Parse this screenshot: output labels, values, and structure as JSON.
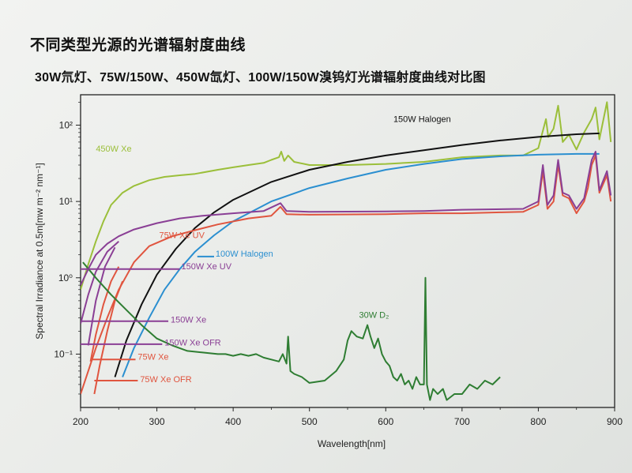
{
  "header": {
    "title": "不同类型光源的光谱辐射度曲线",
    "subtitle": "30W氘灯、75W/150W、450W氙灯、100W/150W溴钨灯光谱辐射度曲线对比图"
  },
  "chart_data": {
    "type": "line",
    "xlabel": "Wavelength[nm]",
    "ylabel": "Spectral Irradiance at 0.5m[mw m⁻² nm⁻¹]",
    "xlim": [
      200,
      900
    ],
    "ylim": [
      0.02,
      250
    ],
    "yscale": "log",
    "x_ticks": [
      200,
      300,
      400,
      500,
      600,
      700,
      800,
      900
    ],
    "x_tick_labels": [
      "200",
      "300",
      "400",
      "500",
      "600",
      "700",
      "800",
      "900"
    ],
    "y_ticks": [
      0.1,
      1,
      10,
      100
    ],
    "y_tick_labels": [
      "10⁻¹",
      "10⁰",
      "10¹",
      "10²"
    ],
    "grid": false,
    "series": [
      {
        "name": "450W Xe",
        "color": "#9bbf3a",
        "label_at": [
          220,
          45
        ],
        "points": [
          [
            200,
            0.7
          ],
          [
            210,
            1.5
          ],
          [
            220,
            3
          ],
          [
            230,
            5.5
          ],
          [
            240,
            9
          ],
          [
            255,
            13
          ],
          [
            270,
            16
          ],
          [
            290,
            19
          ],
          [
            310,
            21
          ],
          [
            330,
            22
          ],
          [
            350,
            23
          ],
          [
            380,
            26
          ],
          [
            400,
            28
          ],
          [
            420,
            30
          ],
          [
            440,
            32
          ],
          [
            450,
            35
          ],
          [
            460,
            38
          ],
          [
            463,
            45
          ],
          [
            467,
            34
          ],
          [
            472,
            40
          ],
          [
            480,
            33
          ],
          [
            500,
            30
          ],
          [
            550,
            30
          ],
          [
            600,
            31
          ],
          [
            650,
            33
          ],
          [
            700,
            38
          ],
          [
            750,
            40
          ],
          [
            780,
            40
          ],
          [
            800,
            50
          ],
          [
            810,
            120
          ],
          [
            813,
            70
          ],
          [
            820,
            90
          ],
          [
            826,
            180
          ],
          [
            832,
            60
          ],
          [
            840,
            75
          ],
          [
            850,
            48
          ],
          [
            860,
            80
          ],
          [
            870,
            120
          ],
          [
            875,
            170
          ],
          [
            880,
            65
          ],
          [
            890,
            200
          ],
          [
            895,
            60
          ]
        ]
      },
      {
        "name": "150W Halogen",
        "color": "#111111",
        "label_at": [
          610,
          110
        ],
        "points": [
          [
            245,
            0.05
          ],
          [
            260,
            0.15
          ],
          [
            280,
            0.45
          ],
          [
            300,
            1.1
          ],
          [
            325,
            2.4
          ],
          [
            350,
            4.5
          ],
          [
            375,
            7.2
          ],
          [
            400,
            10.5
          ],
          [
            450,
            18
          ],
          [
            500,
            26
          ],
          [
            550,
            33
          ],
          [
            600,
            40
          ],
          [
            650,
            47
          ],
          [
            700,
            55
          ],
          [
            750,
            63
          ],
          [
            800,
            70
          ],
          [
            850,
            76
          ],
          [
            880,
            78
          ]
        ]
      },
      {
        "name": "100W Halogen",
        "color": "#2b8fd0",
        "label_at": [
          377,
          1.9
        ],
        "points": [
          [
            255,
            0.05
          ],
          [
            270,
            0.12
          ],
          [
            290,
            0.3
          ],
          [
            310,
            0.7
          ],
          [
            330,
            1.3
          ],
          [
            350,
            2.2
          ],
          [
            375,
            3.6
          ],
          [
            400,
            5.5
          ],
          [
            450,
            10
          ],
          [
            500,
            15
          ],
          [
            550,
            20
          ],
          [
            600,
            26
          ],
          [
            650,
            31
          ],
          [
            700,
            36
          ],
          [
            750,
            39
          ],
          [
            800,
            41
          ],
          [
            850,
            42
          ],
          [
            880,
            42
          ]
        ]
      },
      {
        "name": "75W Xe UV",
        "color": "#e0553f",
        "label_at": [
          303,
          3.3
        ],
        "points": [
          [
            200,
            0.03
          ],
          [
            210,
            0.06
          ],
          [
            220,
            0.12
          ],
          [
            235,
            0.3
          ],
          [
            250,
            0.7
          ],
          [
            270,
            1.6
          ],
          [
            290,
            2.6
          ],
          [
            320,
            3.5
          ],
          [
            350,
            4.2
          ],
          [
            380,
            5
          ],
          [
            420,
            6
          ],
          [
            450,
            6.5
          ],
          [
            462,
            8.5
          ],
          [
            470,
            6.8
          ],
          [
            500,
            6.7
          ],
          [
            600,
            6.8
          ],
          [
            650,
            7
          ],
          [
            700,
            7
          ],
          [
            750,
            7.2
          ],
          [
            780,
            7.3
          ],
          [
            800,
            9
          ],
          [
            806,
            25
          ],
          [
            812,
            8
          ],
          [
            820,
            10
          ],
          [
            826,
            30
          ],
          [
            832,
            12
          ],
          [
            840,
            11
          ],
          [
            850,
            7
          ],
          [
            860,
            10
          ],
          [
            865,
            15
          ],
          [
            870,
            30
          ],
          [
            875,
            40
          ],
          [
            880,
            13
          ],
          [
            890,
            22
          ],
          [
            895,
            10
          ]
        ]
      },
      {
        "name": "150W Xe UV",
        "color": "#8a3f95",
        "label_at": [
          332,
          1.3
        ],
        "points": [
          [
            200,
            0.8
          ],
          [
            210,
            1.3
          ],
          [
            220,
            2
          ],
          [
            235,
            2.8
          ],
          [
            250,
            3.5
          ],
          [
            270,
            4.3
          ],
          [
            300,
            5.2
          ],
          [
            330,
            6
          ],
          [
            360,
            6.5
          ],
          [
            400,
            7
          ],
          [
            440,
            7.5
          ],
          [
            462,
            9.5
          ],
          [
            470,
            7.5
          ],
          [
            500,
            7.3
          ],
          [
            600,
            7.4
          ],
          [
            650,
            7.5
          ],
          [
            700,
            7.8
          ],
          [
            780,
            8
          ],
          [
            800,
            10
          ],
          [
            806,
            30
          ],
          [
            812,
            9
          ],
          [
            820,
            12
          ],
          [
            826,
            35
          ],
          [
            832,
            13
          ],
          [
            840,
            12
          ],
          [
            850,
            8
          ],
          [
            860,
            11
          ],
          [
            870,
            35
          ],
          [
            875,
            45
          ],
          [
            880,
            14
          ],
          [
            890,
            25
          ],
          [
            895,
            12
          ]
        ]
      },
      {
        "name": "150W Xe",
        "color": "#8a3f95",
        "label_at": [
          318,
          0.26
        ],
        "points": [
          [
            200,
            0.25
          ],
          [
            210,
            0.6
          ],
          [
            220,
            1.2
          ],
          [
            235,
            2.2
          ],
          [
            250,
            3
          ]
        ]
      },
      {
        "name": "150W Xe OFR",
        "color": "#8a3f95",
        "label_at": [
          310,
          0.13
        ],
        "points": [
          [
            210,
            0.13
          ],
          [
            220,
            0.5
          ],
          [
            232,
            1.4
          ],
          [
            245,
            2.5
          ]
        ]
      },
      {
        "name": "75W Xe",
        "color": "#e0553f",
        "label_at": [
          275,
          0.085
        ],
        "points": [
          [
            213,
            0.08
          ],
          [
            220,
            0.18
          ],
          [
            230,
            0.45
          ],
          [
            240,
            0.9
          ],
          [
            250,
            1.4
          ]
        ]
      },
      {
        "name": "75W Xe OFR",
        "color": "#e0553f",
        "label_at": [
          278,
          0.043
        ],
        "points": [
          [
            218,
            0.03
          ],
          [
            225,
            0.07
          ],
          [
            235,
            0.2
          ],
          [
            245,
            0.5
          ],
          [
            255,
            0.9
          ]
        ]
      },
      {
        "name": "30W D₂",
        "color": "#2e7d32",
        "label_at": [
          565,
          0.3
        ],
        "points": [
          [
            203,
            1.6
          ],
          [
            220,
            1.0
          ],
          [
            240,
            0.6
          ],
          [
            260,
            0.38
          ],
          [
            280,
            0.24
          ],
          [
            300,
            0.16
          ],
          [
            320,
            0.13
          ],
          [
            340,
            0.11
          ],
          [
            360,
            0.105
          ],
          [
            380,
            0.1
          ],
          [
            390,
            0.1
          ],
          [
            400,
            0.095
          ],
          [
            410,
            0.1
          ],
          [
            420,
            0.095
          ],
          [
            430,
            0.1
          ],
          [
            440,
            0.09
          ],
          [
            450,
            0.085
          ],
          [
            460,
            0.08
          ],
          [
            465,
            0.1
          ],
          [
            470,
            0.075
          ],
          [
            472,
            0.17
          ],
          [
            475,
            0.06
          ],
          [
            480,
            0.055
          ],
          [
            490,
            0.05
          ],
          [
            500,
            0.042
          ],
          [
            520,
            0.045
          ],
          [
            535,
            0.06
          ],
          [
            545,
            0.085
          ],
          [
            550,
            0.15
          ],
          [
            555,
            0.2
          ],
          [
            562,
            0.17
          ],
          [
            570,
            0.16
          ],
          [
            576,
            0.24
          ],
          [
            580,
            0.17
          ],
          [
            585,
            0.12
          ],
          [
            590,
            0.16
          ],
          [
            595,
            0.1
          ],
          [
            600,
            0.08
          ],
          [
            605,
            0.07
          ],
          [
            610,
            0.05
          ],
          [
            615,
            0.045
          ],
          [
            620,
            0.055
          ],
          [
            625,
            0.04
          ],
          [
            630,
            0.045
          ],
          [
            635,
            0.035
          ],
          [
            640,
            0.05
          ],
          [
            645,
            0.04
          ],
          [
            650,
            0.04
          ],
          [
            652,
            1.0
          ],
          [
            654,
            0.04
          ],
          [
            658,
            0.025
          ],
          [
            662,
            0.035
          ],
          [
            668,
            0.03
          ],
          [
            675,
            0.035
          ],
          [
            680,
            0.025
          ],
          [
            690,
            0.03
          ],
          [
            700,
            0.03
          ],
          [
            710,
            0.04
          ],
          [
            720,
            0.035
          ],
          [
            730,
            0.045
          ],
          [
            740,
            0.04
          ],
          [
            750,
            0.05
          ]
        ]
      }
    ]
  }
}
